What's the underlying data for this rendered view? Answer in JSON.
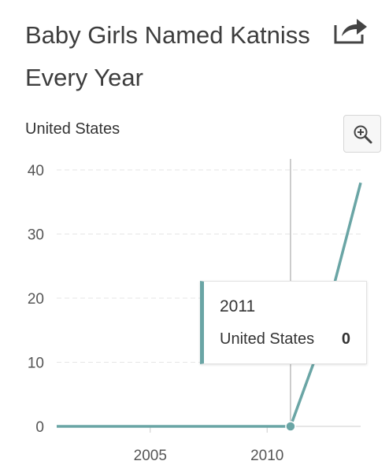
{
  "header": {
    "title": "Baby Girls Named Katniss Every Year",
    "share_icon": "share-icon",
    "zoom_icon": "zoom-in-icon"
  },
  "chart_data": {
    "type": "line",
    "title": "Baby Girls Named Katniss Every Year",
    "subtitle": "United States",
    "xlabel": "",
    "ylabel": "",
    "x": [
      2001,
      2002,
      2003,
      2004,
      2005,
      2006,
      2007,
      2008,
      2009,
      2010,
      2011,
      2012,
      2013,
      2014
    ],
    "series": [
      {
        "name": "United States",
        "values": [
          0,
          0,
          0,
          0,
          0,
          0,
          0,
          0,
          0,
          0,
          0,
          10,
          24,
          38
        ],
        "color": "#6aa5a5"
      }
    ],
    "xlim": [
      2001,
      2014
    ],
    "ylim": [
      0,
      40
    ],
    "xticks": [
      2005,
      2010
    ],
    "yticks": [
      0,
      10,
      20,
      30,
      40
    ],
    "grid": true,
    "highlight": {
      "x": 2011,
      "value": 0
    }
  },
  "tooltip": {
    "year": "2011",
    "series": "United States",
    "value": "0"
  }
}
